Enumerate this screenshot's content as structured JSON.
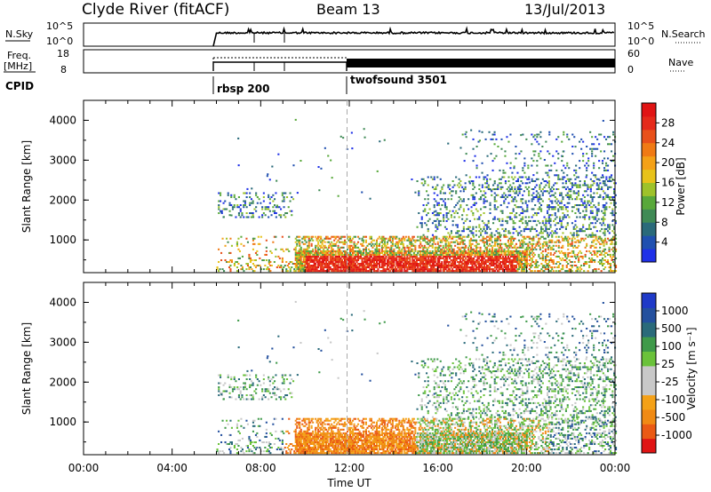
{
  "header": {
    "station": "Clyde River (fitACF)",
    "beam": "Beam 13",
    "date": "13/Jul/2013"
  },
  "left_labels": {
    "nsky": "N.Sky",
    "freq_top": "Freq.",
    "freq_unit": "[MHz]",
    "cpid": "CPID"
  },
  "right_labels": {
    "nsearch": "N.Search",
    "nave": "Nave"
  },
  "nsky_ticks": [
    "10^5",
    "10^0"
  ],
  "nsearch_ticks": [
    "10^5",
    "10^0"
  ],
  "freq_ticks": [
    "18",
    "8"
  ],
  "nave_ticks": [
    "60",
    "0"
  ],
  "cpid_segments": [
    {
      "label": "rbsp 200",
      "start_hour": 6.0
    },
    {
      "label": "twofsound 3501",
      "start_hour": 11.9
    }
  ],
  "chart_data": [
    {
      "type": "heatmap",
      "name": "power-panel",
      "ylabel": "Slant Range [km]",
      "y_ticks": [
        "1000",
        "2000",
        "3000",
        "4000"
      ],
      "ylim": [
        180,
        4500
      ],
      "xlim_hours": [
        0,
        24
      ],
      "colorbar": {
        "label": "Power [dB]",
        "ticks": [
          "4",
          "8",
          "12",
          "16",
          "20",
          "24",
          "28"
        ],
        "colors": [
          "#1f30e8",
          "#2050b0",
          "#2a6a7a",
          "#3f8a55",
          "#58a83a",
          "#9ec22a",
          "#e7c21a",
          "#f4a117",
          "#f07a14",
          "#e8501a",
          "#e52a1a",
          "#e01414"
        ]
      }
    },
    {
      "type": "heatmap",
      "name": "velocity-panel",
      "ylabel": "Slant Range [km]",
      "y_ticks": [
        "1000",
        "2000",
        "3000",
        "4000"
      ],
      "ylim": [
        180,
        4500
      ],
      "xlim_hours": [
        0,
        24
      ],
      "colorbar": {
        "label": "Velocity [m s⁻¹]",
        "ticks": [
          "-1000",
          "-500",
          "-100",
          "-25",
          "25",
          "100",
          "500",
          "1000"
        ],
        "colors": [
          "#e01414",
          "#ea5a14",
          "#f08a14",
          "#f4a117",
          "#c8c8c8",
          "#c8c8c8",
          "#6ac23a",
          "#3f9a4a",
          "#2a6a7a",
          "#24509e",
          "#1f3ac8"
        ]
      }
    }
  ],
  "x_axis": {
    "ticks": [
      "00:00",
      "04:00",
      "08:00",
      "12:00",
      "16:00",
      "20:00",
      "00:00"
    ],
    "label": "Time UT"
  }
}
